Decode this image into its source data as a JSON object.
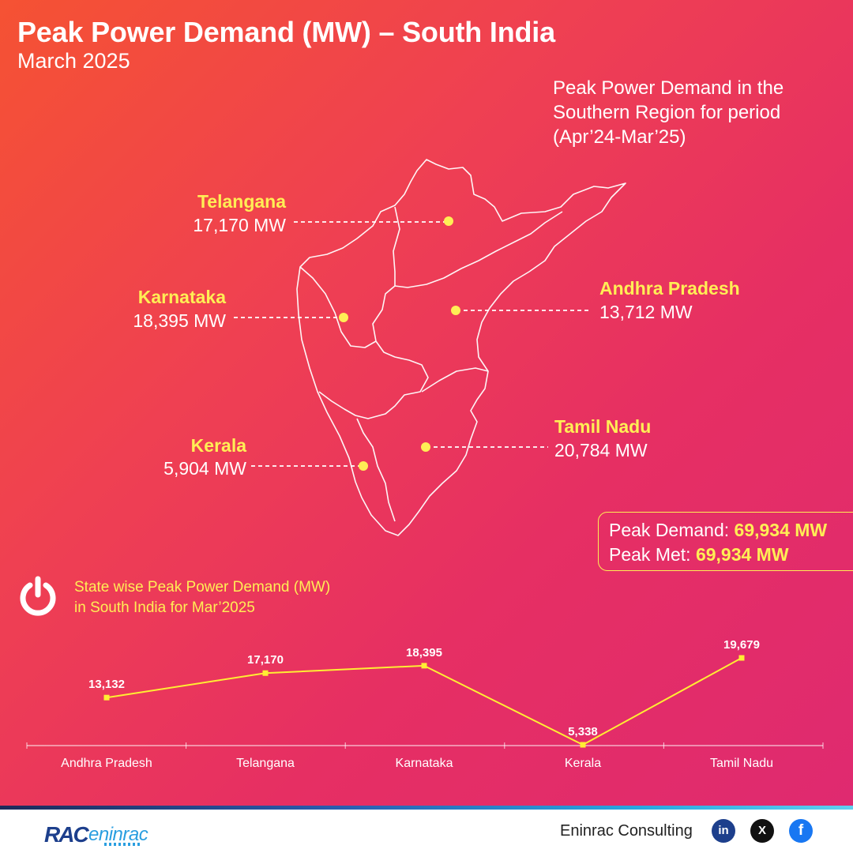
{
  "header": {
    "title": "Peak Power Demand (MW) – South India",
    "subtitle": "March 2025",
    "region_note": "Peak Power Demand in the Southern Region for period (Apr’24-Mar’25)"
  },
  "map": {
    "states": [
      {
        "name": "Telangana",
        "value": "17,170 MW"
      },
      {
        "name": "Karnataka",
        "value": "18,395 MW"
      },
      {
        "name": "Andhra Pradesh",
        "value": "13,712 MW"
      },
      {
        "name": "Tamil Nadu",
        "value": "20,784 MW"
      },
      {
        "name": "Kerala",
        "value": "5,904 MW"
      }
    ]
  },
  "summary": {
    "demand_label": "Peak Demand: ",
    "demand_value": "69,934 MW",
    "met_label": "Peak Met: ",
    "met_value": "69,934 MW"
  },
  "chart_caption": {
    "line1": "State wise Peak Power Demand (MW)",
    "line2": "in South India for Mar’2025"
  },
  "chart_data": {
    "type": "line",
    "categories": [
      "Andhra Pradesh",
      "Telangana",
      "Karnataka",
      "Kerala",
      "Tamil Nadu"
    ],
    "values": [
      13132,
      17170,
      18395,
      5338,
      19679
    ],
    "value_labels": [
      "13,132",
      "17,170",
      "18,395",
      "5,338",
      "19,679"
    ],
    "ylim": [
      5338,
      19679
    ],
    "color": "#ffee33",
    "grid": false
  },
  "footer": {
    "brand_rac": "RAC",
    "brand_eninrac": "eninrac",
    "company": "Eninrac Consulting",
    "social": [
      "in",
      "X",
      "f"
    ]
  },
  "colors": {
    "accent_yellow": "#ffee55",
    "bg_start": "#f55233",
    "bg_end": "#df2a70"
  }
}
